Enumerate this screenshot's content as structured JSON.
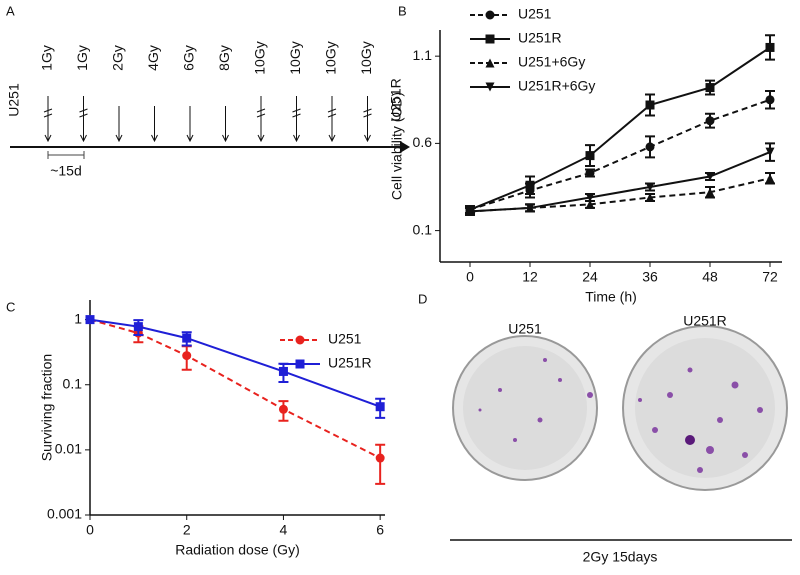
{
  "panel_a": {
    "label": "A",
    "start": "U251",
    "end": "U251R",
    "doses": [
      "1Gy",
      "1Gy",
      "2Gy",
      "4Gy",
      "6Gy",
      "8Gy",
      "10Gy",
      "10Gy",
      "10Gy",
      "10Gy"
    ],
    "interval": "~15d"
  },
  "panel_d": {
    "label": "D",
    "dishes": [
      "U251",
      "U251R"
    ],
    "caption": "2Gy 15days"
  },
  "chart_data": [
    {
      "type": "line",
      "panel": "B",
      "x_label": "Time (h)",
      "y_label": "Cell viability (OD)",
      "categories": [
        "0",
        "12",
        "24",
        "36",
        "48",
        "72"
      ],
      "ylim": [
        -0.08,
        1.25
      ],
      "yticks": [
        0.1,
        0.6,
        1.1
      ],
      "legend": "upper left",
      "series": [
        {
          "name": "U251",
          "color": "#111111",
          "marker": "circle",
          "dashed": true,
          "values": [
            0.22,
            0.33,
            0.43,
            0.58,
            0.73,
            0.85
          ],
          "errors": [
            0.02,
            0.04,
            0.02,
            0.06,
            0.04,
            0.05
          ]
        },
        {
          "name": "U251R",
          "color": "#111111",
          "marker": "square",
          "dashed": false,
          "values": [
            0.22,
            0.36,
            0.53,
            0.82,
            0.92,
            1.15
          ],
          "errors": [
            0.02,
            0.05,
            0.06,
            0.06,
            0.04,
            0.07
          ]
        },
        {
          "name": "U251+6Gy",
          "color": "#111111",
          "marker": "triangle",
          "dashed": true,
          "values": [
            0.21,
            0.23,
            0.25,
            0.29,
            0.32,
            0.4
          ],
          "errors": [
            0.02,
            0.02,
            0.02,
            0.02,
            0.03,
            0.03
          ]
        },
        {
          "name": "U251R+6Gy",
          "color": "#111111",
          "marker": "triangle-down",
          "dashed": false,
          "values": [
            0.21,
            0.23,
            0.29,
            0.35,
            0.41,
            0.55
          ],
          "errors": [
            0.02,
            0.02,
            0.02,
            0.02,
            0.02,
            0.05
          ]
        }
      ]
    },
    {
      "type": "line",
      "panel": "C",
      "x_label": "Radiation dose (Gy)",
      "y_label": "Surviving fraction",
      "x": [
        0,
        1,
        2,
        4,
        6
      ],
      "xlim": [
        0,
        6.1
      ],
      "xticks": [
        0,
        2,
        4,
        6
      ],
      "ylim": [
        0.001,
        2
      ],
      "yticks": [
        1,
        0.1,
        0.01,
        0.001
      ],
      "log_y": true,
      "legend": "upper right",
      "series": [
        {
          "name": "U251",
          "color": "#e8221e",
          "marker": "circle",
          "dashed": true,
          "values": [
            1,
            0.62,
            0.28,
            0.042,
            0.0075
          ],
          "errors": [
            0,
            0.17,
            0.11,
            0.014,
            0.0045
          ]
        },
        {
          "name": "U251R",
          "color": "#1f1fd6",
          "marker": "square",
          "dashed": false,
          "values": [
            1,
            0.78,
            0.52,
            0.16,
            0.046
          ],
          "errors": [
            0,
            0.2,
            0.12,
            0.05,
            0.015
          ]
        }
      ]
    }
  ]
}
